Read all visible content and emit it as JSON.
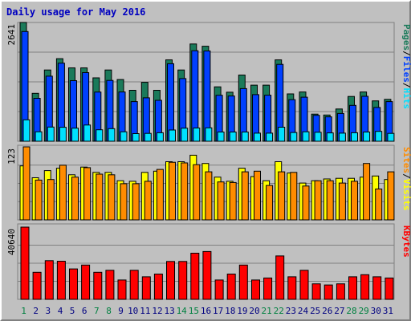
{
  "title": "Daily usage for May 2016",
  "colors": {
    "title": "#0000c0",
    "pages": "#1a7a5a",
    "files": "#0040ff",
    "hits": "#00e0ff",
    "visits": "#ffff00",
    "sites": "#ff8c00",
    "kbytes": "#ff0000",
    "weekend_label": "#008040",
    "day_label": "#000080",
    "axis_value": "#000000",
    "grid": "#808080",
    "slash": "#000000"
  },
  "chart_data": [
    {
      "type": "bar",
      "panel": "top",
      "max_label": "2641",
      "ymax": 2641,
      "ylim": [
        0,
        2641
      ],
      "grid": true,
      "legend": [
        {
          "label": "Pages",
          "color_key": "pages"
        },
        {
          "label": "Files",
          "color_key": "files"
        },
        {
          "label": "Hits",
          "color_key": "hits"
        }
      ],
      "categories": [
        "1",
        "2",
        "3",
        "4",
        "5",
        "6",
        "7",
        "8",
        "9",
        "10",
        "11",
        "12",
        "13",
        "14",
        "15",
        "16",
        "17",
        "18",
        "19",
        "20",
        "21",
        "22",
        "23",
        "24",
        "25",
        "26",
        "27",
        "28",
        "29",
        "30",
        "31"
      ],
      "series": [
        {
          "name": "Hits",
          "color_key": "hits",
          "values": [
            2641,
            1065,
            1585,
            1836,
            1631,
            1631,
            1410,
            1585,
            1372,
            1133,
            1310,
            1133,
            1810,
            1585,
            2163,
            2112,
            1209,
            1090,
            1473,
            1247,
            1247,
            1810,
            1053,
            1096,
            604,
            584,
            717,
            996,
            1096,
            897,
            932
          ]
        },
        {
          "name": "Files",
          "color_key": "files",
          "values": [
            2440,
            955,
            1447,
            1737,
            1347,
            1526,
            1094,
            1352,
            1095,
            881,
            966,
            910,
            1723,
            1393,
            2012,
            2007,
            1023,
            1006,
            1170,
            1037,
            1024,
            1710,
            925,
            979,
            576,
            542,
            617,
            797,
            999,
            752,
            881
          ]
        },
        {
          "name": "Pages",
          "color_key": "pages",
          "values": [
            476,
            210,
            316,
            310,
            290,
            360,
            255,
            280,
            210,
            170,
            175,
            190,
            250,
            290,
            295,
            298,
            205,
            205,
            205,
            180,
            180,
            313,
            195,
            210,
            200,
            185,
            180,
            190,
            205,
            220,
            175
          ]
        }
      ]
    },
    {
      "type": "bar",
      "panel": "middle",
      "max_label": "123",
      "ymax": 123,
      "ylim": [
        0,
        123
      ],
      "grid": true,
      "legend": [
        {
          "label": "Sites",
          "color_key": "sites"
        },
        {
          "label": "Visits",
          "color_key": "visits"
        }
      ],
      "categories": [
        "1",
        "2",
        "3",
        "4",
        "5",
        "6",
        "7",
        "8",
        "9",
        "10",
        "11",
        "12",
        "13",
        "14",
        "15",
        "16",
        "17",
        "18",
        "19",
        "20",
        "21",
        "22",
        "23",
        "24",
        "25",
        "26",
        "27",
        "28",
        "29",
        "30",
        "31"
      ],
      "series": [
        {
          "name": "Visits",
          "color_key": "visits",
          "values": [
            91,
            71,
            83,
            87,
            76,
            89,
            80,
            80,
            66,
            65,
            80,
            82,
            98,
            98,
            109,
            95,
            72,
            65,
            87,
            73,
            66,
            98,
            79,
            62,
            66,
            69,
            70,
            70,
            72,
            74,
            68
          ]
        },
        {
          "name": "Sites",
          "color_key": "sites",
          "values": [
            123,
            67,
            68,
            92,
            72,
            88,
            77,
            76,
            61,
            61,
            65,
            85,
            97,
            96,
            93,
            81,
            64,
            63,
            81,
            82,
            58,
            81,
            80,
            57,
            66,
            66,
            62,
            65,
            95,
            52,
            81
          ]
        }
      ]
    },
    {
      "type": "bar",
      "panel": "bottom",
      "max_label": "40640",
      "ymax": 40640,
      "ylim": [
        0,
        40640
      ],
      "grid": true,
      "legend": [
        {
          "label": "KBytes",
          "color_key": "kbytes"
        }
      ],
      "categories": [
        "1",
        "2",
        "3",
        "4",
        "5",
        "6",
        "7",
        "8",
        "9",
        "10",
        "11",
        "12",
        "13",
        "14",
        "15",
        "16",
        "17",
        "18",
        "19",
        "20",
        "21",
        "22",
        "23",
        "24",
        "25",
        "26",
        "27",
        "28",
        "29",
        "30",
        "31"
      ],
      "series": [
        {
          "name": "KBytes",
          "color_key": "kbytes",
          "values": [
            40640,
            15225,
            21758,
            21468,
            17103,
            19283,
            15225,
            16329,
            10887,
            16329,
            12701,
            14207,
            21323,
            21323,
            25980,
            26920,
            10887,
            14207,
            19283,
            10887,
            11999,
            24410,
            12701,
            16329,
            8708,
            8065,
            8708,
            12701,
            13846,
            12701,
            11999
          ]
        }
      ]
    }
  ],
  "x_axis": {
    "day_labels": [
      "1",
      "2",
      "3",
      "4",
      "5",
      "6",
      "7",
      "8",
      "9",
      "10",
      "11",
      "12",
      "13",
      "14",
      "15",
      "16",
      "17",
      "18",
      "19",
      "20",
      "21",
      "22",
      "23",
      "24",
      "25",
      "26",
      "27",
      "28",
      "29",
      "30",
      "31"
    ],
    "weekend_days": [
      "1",
      "7",
      "8",
      "14",
      "15",
      "21",
      "22",
      "28",
      "29"
    ]
  }
}
